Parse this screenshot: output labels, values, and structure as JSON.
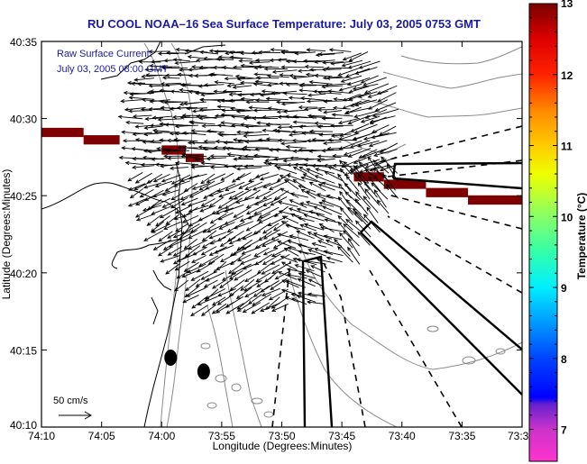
{
  "figure": {
    "title": "RU COOL  NOAA–16  Sea Surface Temperature:  July 03, 2005 0753 GMT",
    "annotation_line1": "Raw Surface Current:",
    "annotation_line2": "July 03, 2005 08:00 GMT",
    "scale_label": "50 cm/s",
    "scale_value_cm_s": 50
  },
  "axes": {
    "xlabel": "Longitude (Degrees:Minutes)",
    "ylabel": "Latitude (Degrees:Minutes)",
    "xticks": [
      "74:10",
      "74:05",
      "74:00",
      "73:55",
      "73:50",
      "73:45",
      "73:40",
      "73:35",
      "73:3"
    ],
    "xtick_values_deg": [
      -74.1667,
      -74.0833,
      -74.0,
      -73.9167,
      -73.8333,
      -73.75,
      -73.6667,
      -73.5833,
      -73.5
    ],
    "yticks": [
      "40:35",
      "40:30",
      "40:25",
      "40:20",
      "40:15",
      "40:10"
    ],
    "ytick_values_deg": [
      40.5833,
      40.5,
      40.4167,
      40.3333,
      40.25,
      40.1667
    ],
    "xlim_deg": [
      -74.1667,
      -73.5
    ],
    "ylim_deg": [
      40.1667,
      40.5833
    ]
  },
  "colorbar": {
    "label": "Temperature (°C)",
    "ticks": [
      "13",
      "12",
      "11",
      "10",
      "9",
      "8",
      "7"
    ],
    "tick_values": [
      13,
      12,
      11,
      10,
      9,
      8,
      7
    ],
    "range": [
      6.55,
      13
    ],
    "stops": [
      {
        "value": 6.55,
        "color": "#ff33cc"
      },
      {
        "value": 7.0,
        "color": "#cc33cc"
      },
      {
        "value": 7.35,
        "color": "#6622cc"
      },
      {
        "value": 7.45,
        "color": "#0000ff"
      },
      {
        "value": 8.0,
        "color": "#0044ff"
      },
      {
        "value": 8.6,
        "color": "#00aaff"
      },
      {
        "value": 9.0,
        "color": "#00eeff"
      },
      {
        "value": 9.5,
        "color": "#33ffaa"
      },
      {
        "value": 10.0,
        "color": "#88ff66"
      },
      {
        "value": 10.6,
        "color": "#eeff00"
      },
      {
        "value": 11.0,
        "color": "#ffcc00"
      },
      {
        "value": 11.5,
        "color": "#ff8800"
      },
      {
        "value": 12.0,
        "color": "#ff2200"
      },
      {
        "value": 12.5,
        "color": "#dd0000"
      },
      {
        "value": 13.0,
        "color": "#7a0000"
      }
    ]
  },
  "colors": {
    "title_blue": "#1a1aa6",
    "sst_patch": "#7f0000",
    "coast": "#000000",
    "bathymetry": "#8a8a8a"
  },
  "sst_patches": [
    {
      "lon": [
        -74.1667,
        -74.1083
      ],
      "lat": [
        40.48,
        40.49
      ]
    },
    {
      "lon": [
        -74.1083,
        -74.0583
      ],
      "lat": [
        40.472,
        40.482
      ]
    },
    {
      "lon": [
        -74.0,
        -73.9667
      ],
      "lat": [
        40.461,
        40.471
      ]
    },
    {
      "lon": [
        -73.9667,
        -73.9417
      ],
      "lat": [
        40.453,
        40.462
      ]
    },
    {
      "lon": [
        -73.7333,
        -73.6917
      ],
      "lat": [
        40.432,
        40.442
      ]
    },
    {
      "lon": [
        -73.6917,
        -73.6333
      ],
      "lat": [
        40.424,
        40.434
      ]
    },
    {
      "lon": [
        -73.6333,
        -73.575
      ],
      "lat": [
        40.415,
        40.425
      ]
    },
    {
      "lon": [
        -73.575,
        -73.5
      ],
      "lat": [
        40.407,
        40.417
      ]
    }
  ],
  "features": {
    "disposal_sites": [
      {
        "lon": -73.9875,
        "lat": 40.2417
      },
      {
        "lon": -73.9417,
        "lat": 40.2267
      }
    ]
  }
}
